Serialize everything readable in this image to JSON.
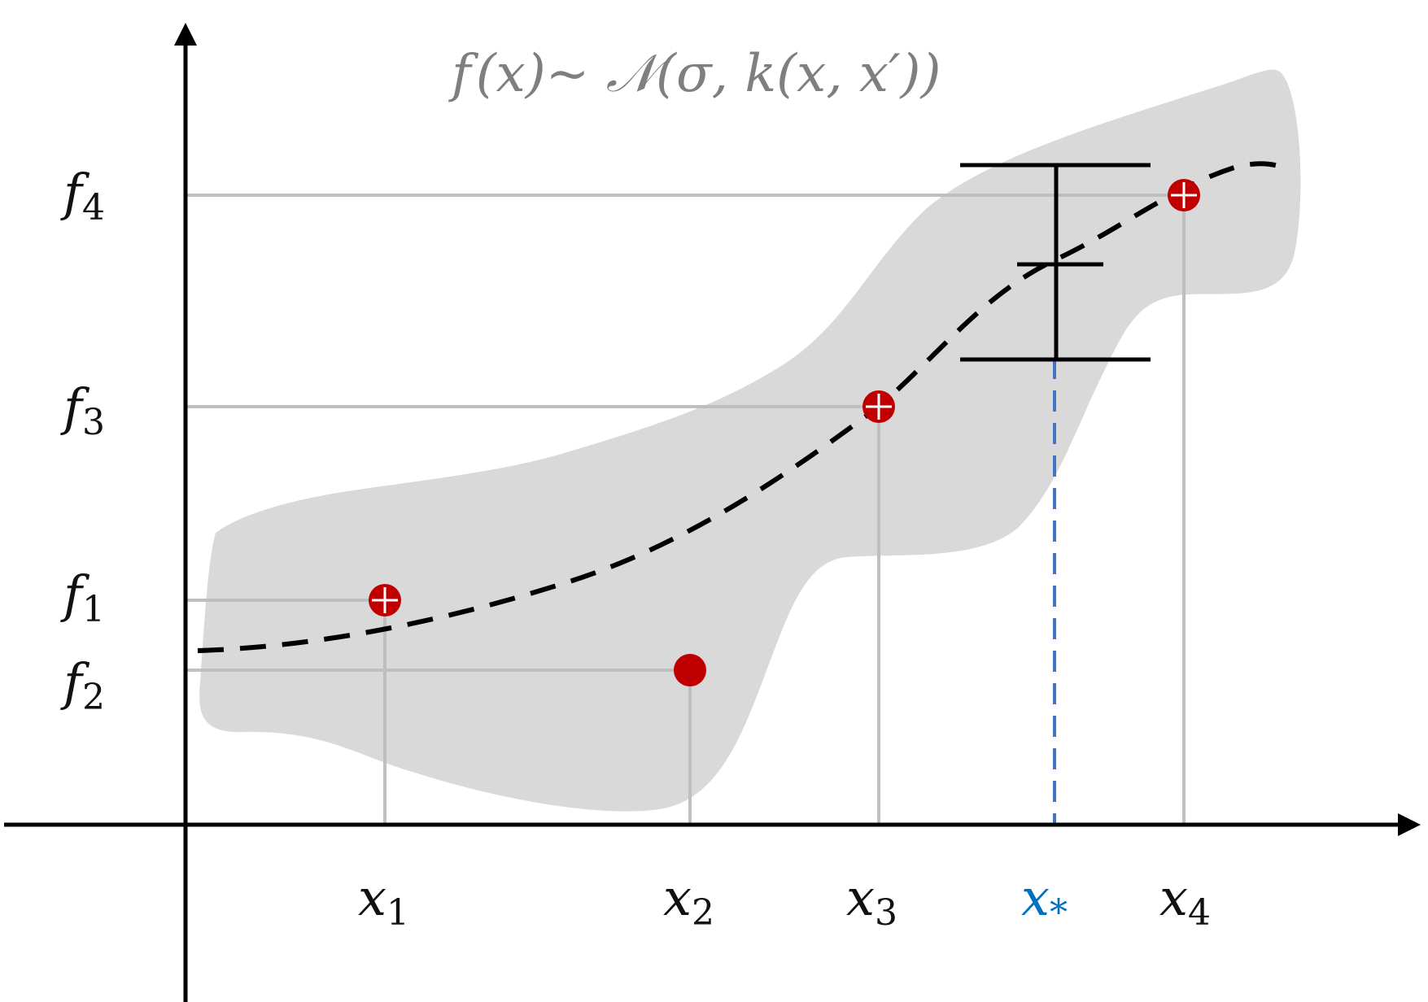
{
  "title": "f(x)~ 𝒩(σ, k(x, x′))",
  "title_parts": {
    "f": "f",
    "x1": "(x)",
    "sim": "~ ",
    "N": "𝒩",
    "args": "(σ, k(x, x′))"
  },
  "y_labels": [
    {
      "base": "f",
      "sub": "4"
    },
    {
      "base": "f",
      "sub": "3"
    },
    {
      "base": "f",
      "sub": "1"
    },
    {
      "base": "f",
      "sub": "2"
    }
  ],
  "x_labels": [
    {
      "base": "x",
      "sub": "1"
    },
    {
      "base": "x",
      "sub": "2"
    },
    {
      "base": "x",
      "sub": "3"
    },
    {
      "base": "x",
      "sub": "*"
    },
    {
      "base": "x",
      "sub": "4"
    }
  ],
  "colors": {
    "axis": "#000000",
    "confidence_band": "#d9d9d9",
    "guide_lines": "#bfbfbf",
    "observations": "#c00000",
    "mean_curve": "#000000",
    "test_point": "#4472c4",
    "test_label": "#0070c0",
    "title": "#7f7f7f"
  }
}
